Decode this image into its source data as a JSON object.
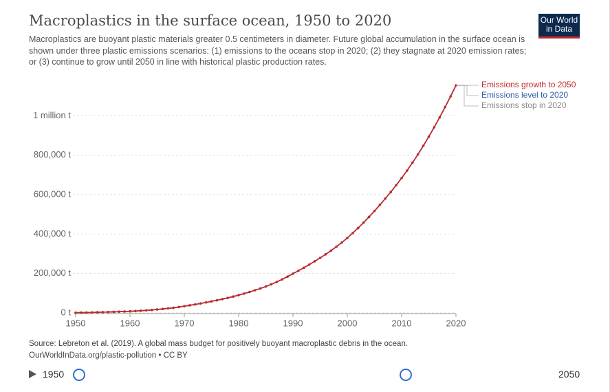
{
  "logo": "Our World in Data",
  "chart_data": {
    "type": "line",
    "title": "Macroplastics in the surface ocean, 1950 to 2020",
    "subtitle": "Macroplastics are buoyant plastic materials greater 0.5 centimeters in diameter. Future global accumulation in the surface ocean is shown under three plastic emissions scenarios: (1) emissions to the oceans stop in 2020; (2) they stagnate at 2020 emission rates; or (3) continue to grow until 2050 in line with historical plastic production rates.",
    "source": "Source: Lebreton et al. (2019). A global mass budget for positively buoyant macroplastic debris in the ocean.",
    "url_license": "OurWorldInData.org/plastic-pollution • CC BY",
    "x": [
      1950,
      1951,
      1952,
      1953,
      1954,
      1955,
      1956,
      1957,
      1958,
      1959,
      1960,
      1961,
      1962,
      1963,
      1964,
      1965,
      1966,
      1967,
      1968,
      1969,
      1970,
      1971,
      1972,
      1973,
      1974,
      1975,
      1976,
      1977,
      1978,
      1979,
      1980,
      1981,
      1982,
      1983,
      1984,
      1985,
      1986,
      1987,
      1988,
      1989,
      1990,
      1991,
      1992,
      1993,
      1994,
      1995,
      1996,
      1997,
      1998,
      1999,
      2000,
      2001,
      2002,
      2003,
      2004,
      2005,
      2006,
      2007,
      2008,
      2009,
      2010,
      2011,
      2012,
      2013,
      2014,
      2015,
      2016,
      2017,
      2018,
      2019,
      2020
    ],
    "series": [
      {
        "name": "Emissions stop in 2020",
        "color": "#8a8a8a",
        "values": [
          1000,
          1500,
          2000,
          2600,
          3200,
          3900,
          4600,
          5400,
          6200,
          7100,
          8000,
          9500,
          11000,
          13000,
          15000,
          17500,
          20000,
          23000,
          26000,
          30000,
          34000,
          38500,
          43000,
          48000,
          53000,
          58500,
          64000,
          70000,
          76000,
          83000,
          90000,
          98000,
          106000,
          115000,
          124000,
          134000,
          145000,
          157000,
          170000,
          184000,
          199000,
          214000,
          229000,
          245000,
          262000,
          279000,
          297000,
          316000,
          336000,
          357000,
          380000,
          405000,
          431000,
          458000,
          487000,
          517000,
          548000,
          580000,
          613000,
          648000,
          684000,
          722000,
          762000,
          804000,
          848000,
          894000,
          942000,
          992000,
          1044000,
          1098000,
          1154000
        ]
      },
      {
        "name": "Emissions level to 2020",
        "color": "#2f5ba6",
        "values": [
          1000,
          1500,
          2000,
          2600,
          3200,
          3900,
          4600,
          5400,
          6200,
          7100,
          8000,
          9500,
          11000,
          13000,
          15000,
          17500,
          20000,
          23000,
          26000,
          30000,
          34000,
          38500,
          43000,
          48000,
          53000,
          58500,
          64000,
          70000,
          76000,
          83000,
          90000,
          98000,
          106000,
          115000,
          124000,
          134000,
          145000,
          157000,
          170000,
          184000,
          199000,
          214000,
          229000,
          245000,
          262000,
          279000,
          297000,
          316000,
          336000,
          357000,
          380000,
          405000,
          431000,
          458000,
          487000,
          517000,
          548000,
          580000,
          613000,
          648000,
          684000,
          722000,
          762000,
          804000,
          848000,
          894000,
          942000,
          992000,
          1044000,
          1098000,
          1154000
        ]
      },
      {
        "name": "Emissions growth to 2050",
        "color": "#c0292b",
        "values": [
          1000,
          1500,
          2000,
          2600,
          3200,
          3900,
          4600,
          5400,
          6200,
          7100,
          8000,
          9500,
          11000,
          13000,
          15000,
          17500,
          20000,
          23000,
          26000,
          30000,
          34000,
          38500,
          43000,
          48000,
          53000,
          58500,
          64000,
          70000,
          76000,
          83000,
          90000,
          98000,
          106000,
          115000,
          124000,
          134000,
          145000,
          157000,
          170000,
          184000,
          199000,
          214000,
          229000,
          245000,
          262000,
          279000,
          297000,
          316000,
          336000,
          357000,
          380000,
          405000,
          431000,
          458000,
          487000,
          517000,
          548000,
          580000,
          613000,
          648000,
          684000,
          722000,
          762000,
          804000,
          848000,
          894000,
          942000,
          992000,
          1044000,
          1098000,
          1154000
        ]
      }
    ],
    "xlim": [
      1950,
      2020
    ],
    "xticks": [
      1950,
      1960,
      1970,
      1980,
      1990,
      2000,
      2010,
      2020
    ],
    "ylim": [
      0,
      1200000
    ],
    "yticks": [
      {
        "value": 0,
        "label": "0 t"
      },
      {
        "value": 200000,
        "label": "200,000 t"
      },
      {
        "value": 400000,
        "label": "400,000 t"
      },
      {
        "value": 600000,
        "label": "600,000 t"
      },
      {
        "value": 800000,
        "label": "800,000 t"
      },
      {
        "value": 1000000,
        "label": "1 million t"
      }
    ],
    "grid": true
  },
  "timeline": {
    "start": "1950",
    "end": "2050"
  }
}
